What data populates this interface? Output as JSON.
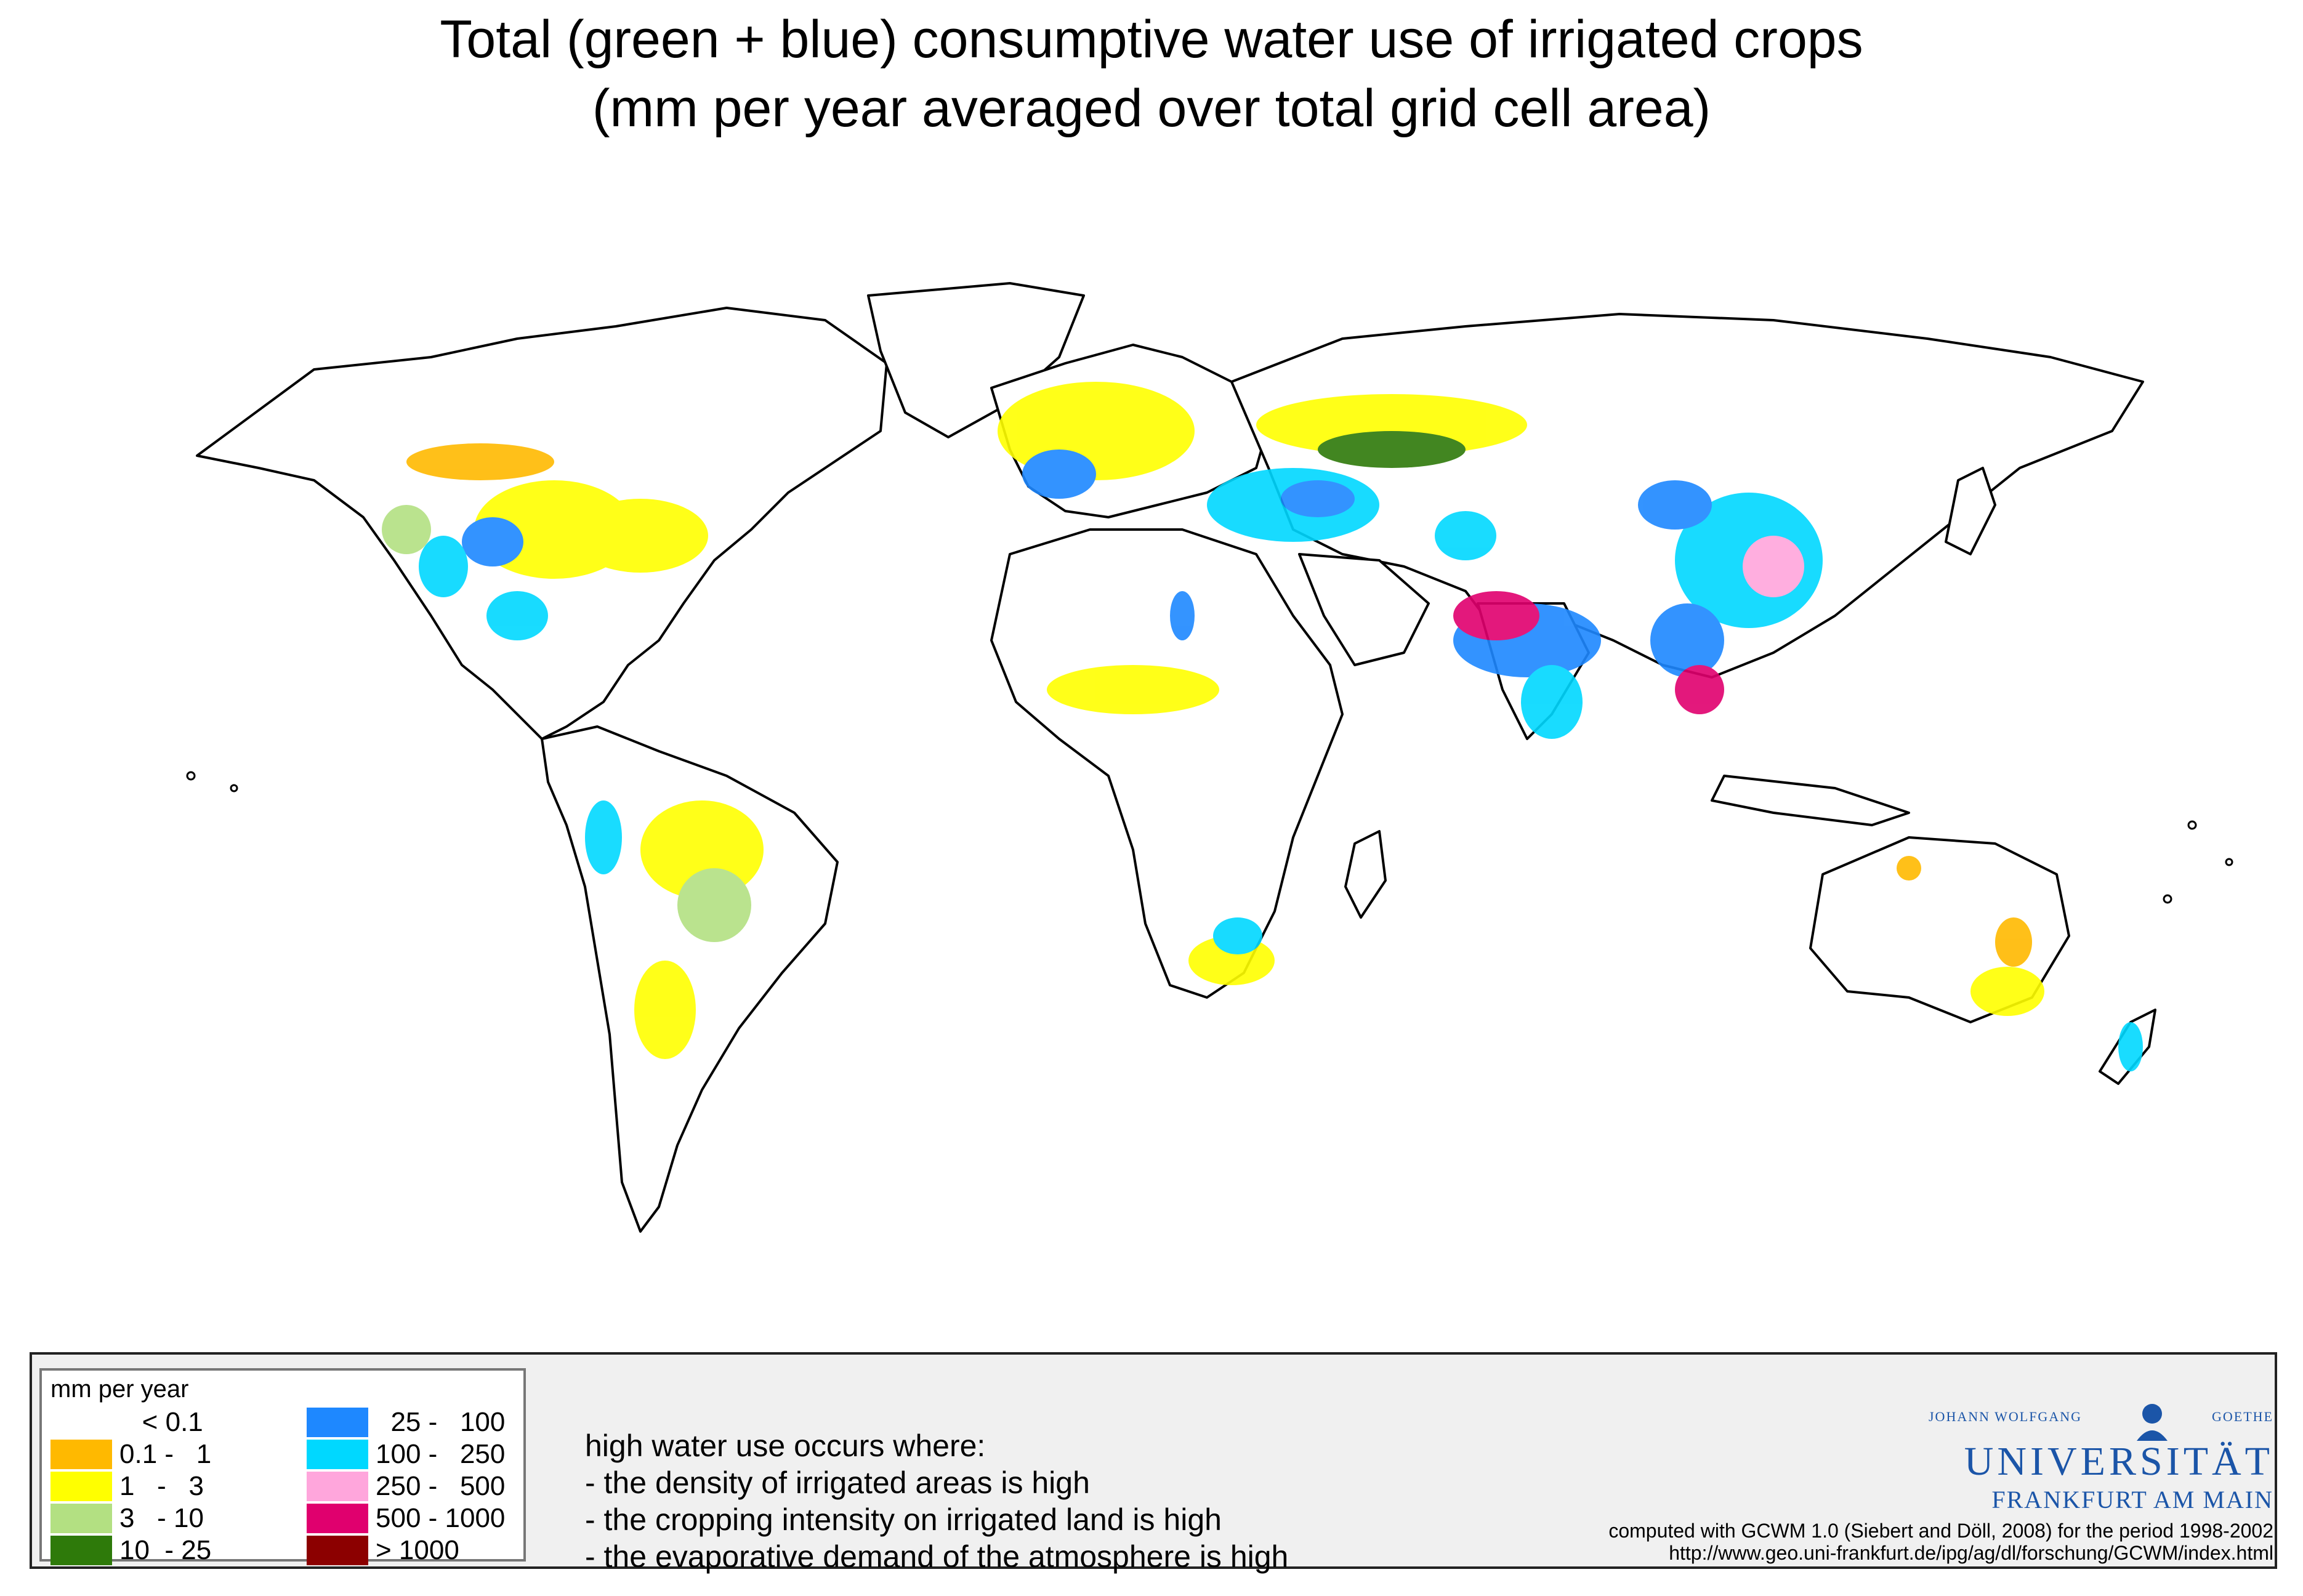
{
  "title": {
    "line1": "Total (green + blue) consumptive water use of irrigated crops",
    "line2": "(mm per year averaged over total grid cell area)"
  },
  "legend": {
    "title": "mm per year",
    "classes": [
      {
        "label": "   < 0.1",
        "color": "#ffffff"
      },
      {
        "label": "0.1 -   1",
        "color": "#ffb900"
      },
      {
        "label": "1   -   3",
        "color": "#ffff00"
      },
      {
        "label": "3   - 10",
        "color": "#b3e082"
      },
      {
        "label": "10  - 25",
        "color": "#2e7a0a"
      },
      {
        "label": "  25 -   100",
        "color": "#1e88ff"
      },
      {
        "label": "100 -   250",
        "color": "#00d8ff"
      },
      {
        "label": "250 -   500",
        "color": "#ffa6dc"
      },
      {
        "label": "500 - 1000",
        "color": "#e0006e"
      },
      {
        "label": "> 1000",
        "color": "#8c0000"
      }
    ]
  },
  "notes": [
    "high water use occurs where:",
    "- the density of irrigated areas is high",
    "- the cropping intensity on irrigated land is high",
    "- the evaporative demand of the atmosphere is high"
  ],
  "logo": {
    "small_left": "JOHANN WOLFGANG",
    "small_right": "GOETHE",
    "name": "UNIVERSITÄT",
    "city": "FRANKFURT AM MAIN"
  },
  "credit": {
    "line1": "computed with GCWM 1.0 (Siebert and Döll, 2008) for the period 1998-2002",
    "line2": "http://www.geo.uni-frankfurt.de/ipg/ag/dl/forschung/GCWM/index.html"
  }
}
